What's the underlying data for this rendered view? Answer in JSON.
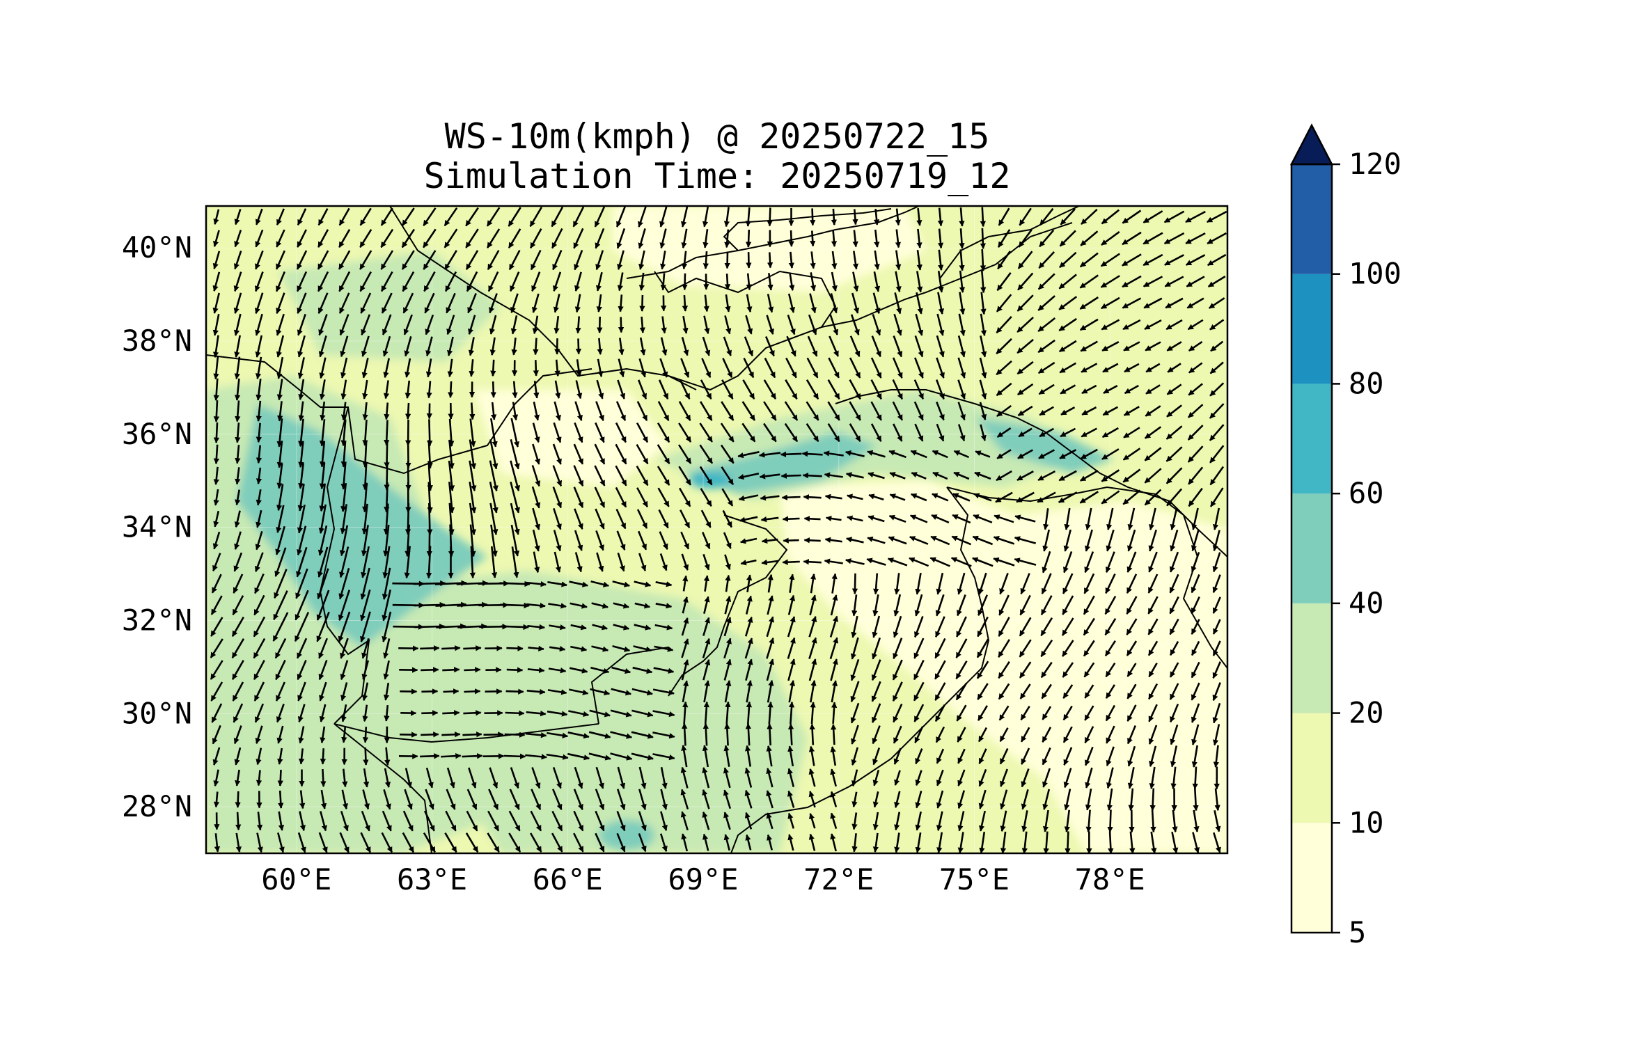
{
  "figure": {
    "title_line1": "WS-10m(kmph) @ 20250722_15",
    "title_line2": "Simulation Time: 20250719_12"
  },
  "map": {
    "lon_range": [
      58,
      80.6
    ],
    "lat_range": [
      27,
      40.9
    ],
    "lon_ticks": [
      {
        "value": 60,
        "label": "60°E"
      },
      {
        "value": 63,
        "label": "63°E"
      },
      {
        "value": 66,
        "label": "66°E"
      },
      {
        "value": 69,
        "label": "69°E"
      },
      {
        "value": 72,
        "label": "72°E"
      },
      {
        "value": 75,
        "label": "75°E"
      },
      {
        "value": 78,
        "label": "78°E"
      }
    ],
    "lat_ticks": [
      {
        "value": 40,
        "label": "40°N"
      },
      {
        "value": 38,
        "label": "38°N"
      },
      {
        "value": 36,
        "label": "36°N"
      },
      {
        "value": 34,
        "label": "34°N"
      },
      {
        "value": 32,
        "label": "32°N"
      },
      {
        "value": 30,
        "label": "30°N"
      },
      {
        "value": 28,
        "label": "28°N"
      }
    ],
    "gridlines": true,
    "vector_field": "10 m wind arrows",
    "border_color": "#000000"
  },
  "colorbar": {
    "extend": "max",
    "levels": [
      5,
      10,
      20,
      40,
      60,
      80,
      100,
      120
    ],
    "tick_labels": [
      "5",
      "10",
      "20",
      "40",
      "60",
      "80",
      "100",
      "120"
    ],
    "colors": [
      "#ffffd9",
      "#edf8b1",
      "#c7e9b4",
      "#7fcdbb",
      "#41b6c4",
      "#1d91c0",
      "#225ea8",
      "#0c2c84"
    ],
    "extend_color": "#081d58"
  }
}
